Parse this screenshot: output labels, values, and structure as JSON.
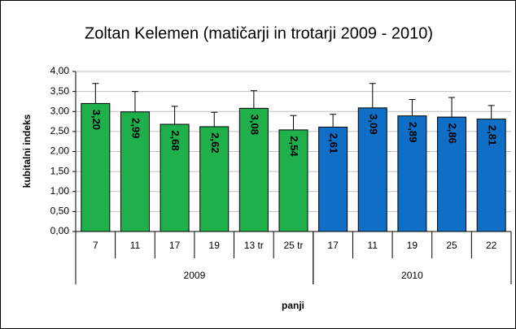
{
  "chart_data": {
    "type": "bar",
    "title": "Zoltan Kelemen (matičarji in trotarji 2009 - 2010)",
    "ylabel": "kubitalni indeks",
    "xlabel": "panji",
    "ylim": [
      0,
      4
    ],
    "yticks": [
      {
        "value": 0,
        "label": "0,00"
      },
      {
        "value": 0.5,
        "label": "0,50"
      },
      {
        "value": 1,
        "label": "1,00"
      },
      {
        "value": 1.5,
        "label": "1,50"
      },
      {
        "value": 2,
        "label": "2,00"
      },
      {
        "value": 2.5,
        "label": "2,50"
      },
      {
        "value": 3,
        "label": "3,00"
      },
      {
        "value": 3.5,
        "label": "3,50"
      },
      {
        "value": 4,
        "label": "4,00"
      }
    ],
    "grid": true,
    "groups": [
      {
        "label": "2009",
        "color": "#1fb04c",
        "categories": [
          "7",
          "11",
          "17",
          "19",
          "13 tr",
          "25 tr"
        ],
        "values": [
          3.2,
          2.99,
          2.68,
          2.62,
          3.08,
          2.54
        ],
        "value_labels": [
          "3,20",
          "2,99",
          "2,68",
          "2,62",
          "3,08",
          "2,54"
        ],
        "errors": [
          0.5,
          0.51,
          0.45,
          0.36,
          0.44,
          0.36
        ]
      },
      {
        "label": "2010",
        "color": "#0f6fc6",
        "categories": [
          "17",
          "11",
          "19",
          "25",
          "22"
        ],
        "values": [
          2.61,
          3.09,
          2.89,
          2.86,
          2.81
        ],
        "value_labels": [
          "2,61",
          "3,09",
          "2,89",
          "2,86",
          "2,81"
        ],
        "errors": [
          0.32,
          0.61,
          0.41,
          0.49,
          0.34
        ]
      }
    ]
  }
}
